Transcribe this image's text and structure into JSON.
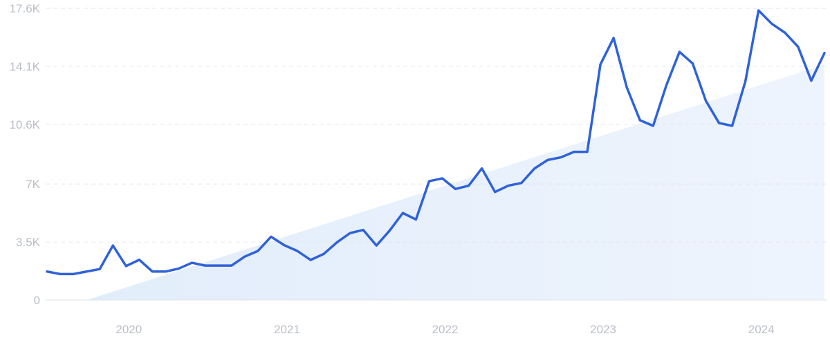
{
  "chart_data": {
    "type": "line",
    "title": "",
    "xlabel": "",
    "ylabel": "",
    "grid": true,
    "legend": "none",
    "colors": {
      "line": "#2f62d9",
      "trend_fill_start": "#e2edfb",
      "trend_fill_end": "#ffffff",
      "grid": "#e3e6ea",
      "tick_text": "#b9bec7"
    },
    "ylim": [
      0,
      17600
    ],
    "y_ticks": [
      {
        "value": 0,
        "label": "0"
      },
      {
        "value": 3500,
        "label": "3.5K"
      },
      {
        "value": 7000,
        "label": "7K"
      },
      {
        "value": 10600,
        "label": "10.6K"
      },
      {
        "value": 14100,
        "label": "14.1K"
      },
      {
        "value": 17600,
        "label": "17.6K"
      }
    ],
    "x_ticks": [
      {
        "value": "2020-01",
        "label": "2020"
      },
      {
        "value": "2021-01",
        "label": "2021"
      },
      {
        "value": "2022-01",
        "label": "2022"
      },
      {
        "value": "2023-01",
        "label": "2023"
      },
      {
        "value": "2024-01",
        "label": "2024"
      }
    ],
    "trend": {
      "start": {
        "x": "2019-10",
        "y": 0
      },
      "end": {
        "x": "2024-06",
        "y": 14200
      }
    },
    "x": [
      "2019-07",
      "2019-08",
      "2019-09",
      "2019-10",
      "2019-11",
      "2019-12",
      "2020-01",
      "2020-02",
      "2020-03",
      "2020-04",
      "2020-05",
      "2020-06",
      "2020-07",
      "2020-08",
      "2020-09",
      "2020-10",
      "2020-11",
      "2020-12",
      "2021-01",
      "2021-02",
      "2021-03",
      "2021-04",
      "2021-05",
      "2021-06",
      "2021-07",
      "2021-08",
      "2021-09",
      "2021-10",
      "2021-11",
      "2021-12",
      "2022-01",
      "2022-02",
      "2022-03",
      "2022-04",
      "2022-05",
      "2022-06",
      "2022-07",
      "2022-08",
      "2022-09",
      "2022-10",
      "2022-11",
      "2022-12",
      "2023-01",
      "2023-02",
      "2023-03",
      "2023-04",
      "2023-05",
      "2023-06",
      "2023-07",
      "2023-08",
      "2023-09",
      "2023-10",
      "2023-11",
      "2023-12",
      "2024-01",
      "2024-02",
      "2024-03",
      "2024-04",
      "2024-05",
      "2024-06"
    ],
    "series": [
      {
        "values": [
          1720,
          1570,
          1570,
          1720,
          1870,
          3290,
          2050,
          2430,
          1720,
          1720,
          1900,
          2250,
          2080,
          2080,
          2080,
          2620,
          2960,
          3820,
          3310,
          2960,
          2420,
          2780,
          3480,
          4040,
          4230,
          3290,
          4190,
          5250,
          4860,
          7170,
          7340,
          6700,
          6900,
          7940,
          6520,
          6900,
          7060,
          7940,
          8450,
          8610,
          8940,
          8940,
          14220,
          15810,
          12830,
          10850,
          10510,
          12950,
          14970,
          14270,
          12020,
          10680,
          10510,
          13190,
          17470,
          16670,
          16130,
          15280,
          13230,
          14900
        ]
      }
    ]
  }
}
